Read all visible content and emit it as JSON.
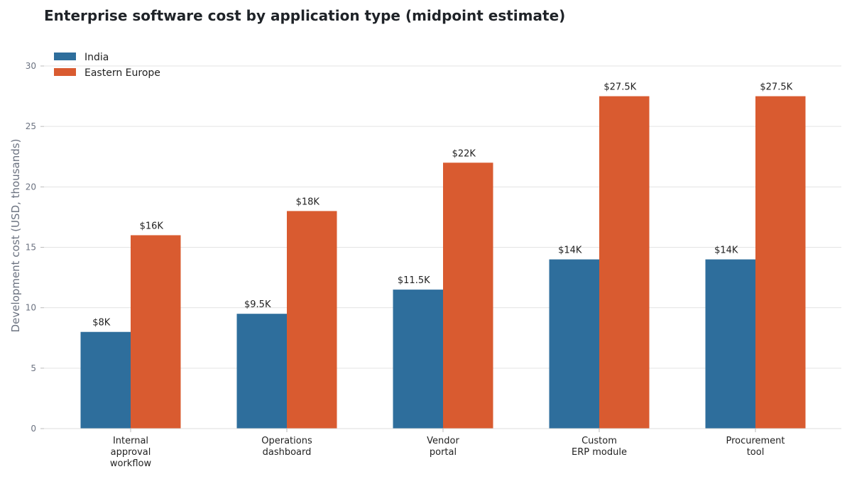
{
  "chart_data": {
    "type": "bar",
    "title": "Enterprise software cost by application type (midpoint estimate)",
    "ylabel": "Development cost (USD, thousands)",
    "xlabel": "",
    "ylim": [
      0,
      30
    ],
    "yticks": [
      0,
      5,
      10,
      15,
      20,
      25,
      30
    ],
    "grid": "horizontal",
    "legend_position": "top-left",
    "categories": [
      [
        "Internal",
        "approval",
        "workflow"
      ],
      [
        "Operations",
        "dashboard"
      ],
      [
        "Vendor",
        "portal"
      ],
      [
        "Custom",
        "ERP module"
      ],
      [
        "Procurement",
        "tool"
      ]
    ],
    "series": [
      {
        "name": "India",
        "color": "#2e6e9c",
        "values": [
          8,
          9.5,
          11.5,
          14,
          14
        ],
        "labels": [
          "$8K",
          "$9.5K",
          "$11.5K",
          "$14K",
          "$14K"
        ]
      },
      {
        "name": "Eastern Europe",
        "color": "#d95b30",
        "values": [
          16,
          18,
          22,
          27.5,
          27.5
        ],
        "labels": [
          "$16K",
          "$18K",
          "$22K",
          "$27.5K",
          "$27.5K"
        ]
      }
    ]
  }
}
